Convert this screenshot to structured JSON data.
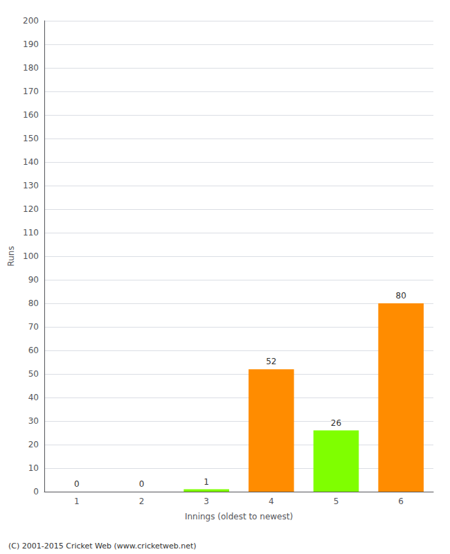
{
  "chart_data": {
    "type": "bar",
    "categories": [
      "1",
      "2",
      "3",
      "4",
      "5",
      "6"
    ],
    "values": [
      0,
      0,
      1,
      52,
      26,
      80
    ],
    "colors": [
      "#FF8C00",
      "#FF8C00",
      "#7FFF00",
      "#FF8C00",
      "#7FFF00",
      "#FF8C00"
    ],
    "xlabel": "Innings (oldest to newest)",
    "ylabel": "Runs",
    "ylim": [
      0,
      200
    ],
    "yticks": [
      0,
      10,
      20,
      30,
      40,
      50,
      60,
      70,
      80,
      90,
      100,
      110,
      120,
      130,
      140,
      150,
      160,
      170,
      180,
      190,
      200
    ],
    "grid": true,
    "data_labels": true,
    "annotations": [
      "(C) 2001-2015 Cricket Web (www.cricketweb.net)"
    ]
  }
}
